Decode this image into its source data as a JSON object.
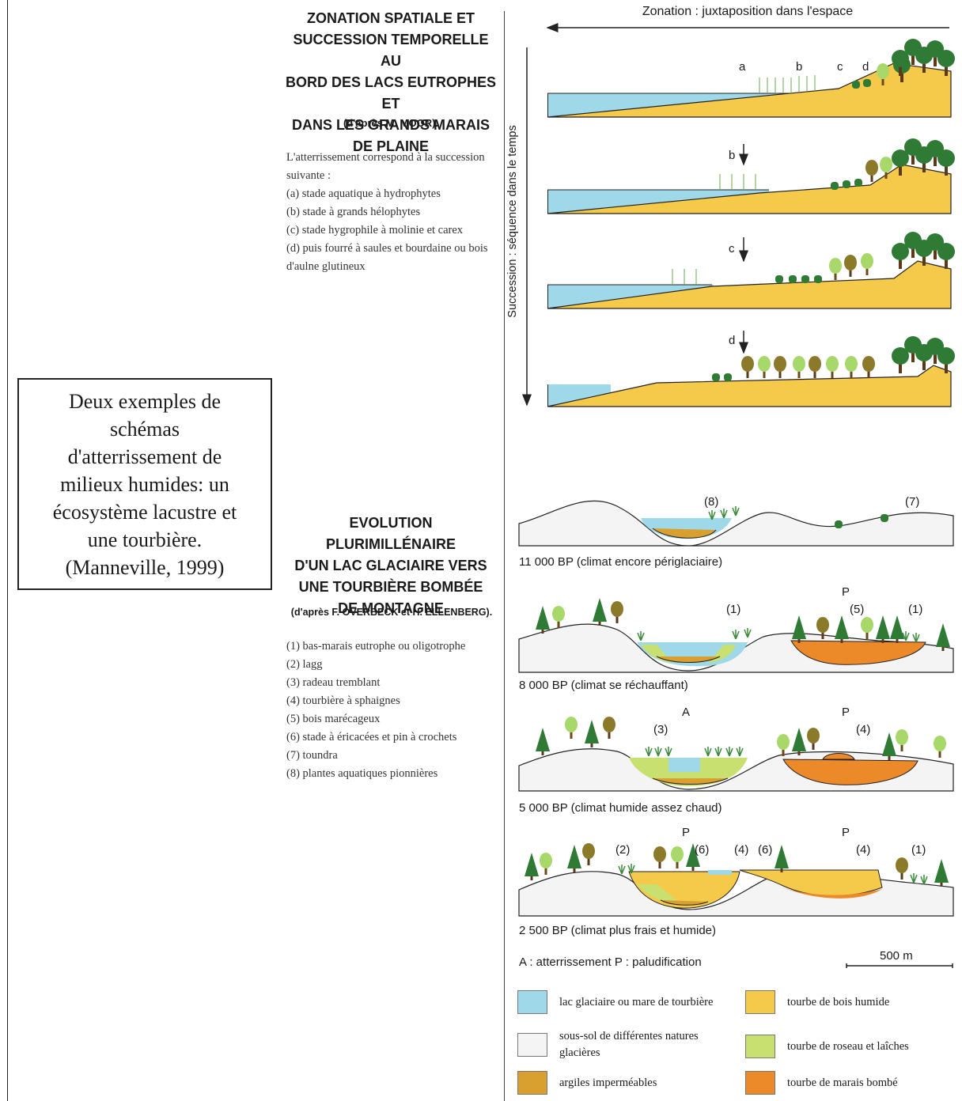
{
  "caption_lines": [
    "Deux exemples de",
    "schémas",
    "d'atterrissement de",
    "milieux humides: un",
    "écosystème lacustre et",
    "une tourbière.",
    "(Manneville, 1999)"
  ],
  "section1": {
    "title_lines": [
      "ZONATION SPATIALE ET",
      "SUCCESSION TEMPORELLE AU",
      "BORD DES LACS EUTROPHES ET",
      "DANS LES GRANDS MARAIS",
      "DE PLAINE"
    ],
    "source": "(d'après M. MOOR).",
    "description_lines": [
      "L'atterrissement correspond à la succession",
      "suivante :",
      "(a) stade aquatique à hydrophytes",
      "(b) stade à grands hélophytes",
      "(c) stade hygrophile à molinie et carex",
      "(d) puis fourré à saules et bourdaine ou bois",
      "d'aulne glutineux"
    ],
    "zonation_label": "Zonation : juxtaposition dans l'espace",
    "succession_label": "Succession : séquence dans le temps",
    "top_labels": [
      "a",
      "b",
      "c",
      "d"
    ],
    "stage_labels": [
      "b",
      "c",
      "d"
    ]
  },
  "section2": {
    "title_lines": [
      "EVOLUTION PLURIMILLÉNAIRE",
      "D'UN LAC GLACIAIRE VERS",
      "UNE TOURBIÈRE BOMBÉE",
      "DE MONTAGNE"
    ],
    "source": "(d'après F. OVERBECK et H. ELLENBERG).",
    "list": [
      "(1) bas-marais eutrophe ou oligotrophe",
      "(2) lagg",
      "(3) radeau tremblant",
      "(4) tourbière à sphaignes",
      "(5) bois marécageux",
      "(6) stade à éricacées et pin à crochets",
      "(7) toundra",
      "(8) plantes aquatiques pionnières"
    ],
    "eras": [
      "11 000 BP (climat encore périglaciaire)",
      "8 000 BP (climat se réchauffant)",
      "5 000 BP (climat humide assez chaud)",
      "2 500 BP (climat plus frais et humide)"
    ],
    "panel_labels": {
      "p1": [
        "(8)",
        "(7)"
      ],
      "p2": [
        "(1)",
        "P",
        "(5)",
        "(1)"
      ],
      "p3": [
        "A",
        "(3)",
        "P",
        "(4)"
      ],
      "p4": [
        "(2)",
        "P",
        "(6)",
        "(4)",
        "(6)",
        "P",
        "(4)",
        "(1)"
      ]
    },
    "ap_legend": "A : atterrissement   P : paludification",
    "scale": "500 m",
    "legend": [
      {
        "text": "lac glaciaire ou mare de tourbière",
        "color": "#9fd8e8"
      },
      {
        "text": "tourbe de bois humide",
        "color": "#f5c94a"
      },
      {
        "text": "sous-sol de différentes natures glacières",
        "color": "#f4f4f4"
      },
      {
        "text": "tourbe de roseau et laîches",
        "color": "#c8e070"
      },
      {
        "text": "argiles imperméables",
        "color": "#d9a030"
      },
      {
        "text": "tourbe de marais bombé",
        "color": "#ec8a2a"
      }
    ]
  },
  "colors": {
    "water": "#9fd8e8",
    "wood_peat": "#f5c94a",
    "subsoil": "#f4f4f4",
    "reed_peat": "#c8e070",
    "clay": "#d9a030",
    "raised_bog": "#ec8a2a",
    "tree_dark": "#2f7a34",
    "tree_light": "#a8d86a",
    "tree_olive": "#8a7a2a"
  }
}
